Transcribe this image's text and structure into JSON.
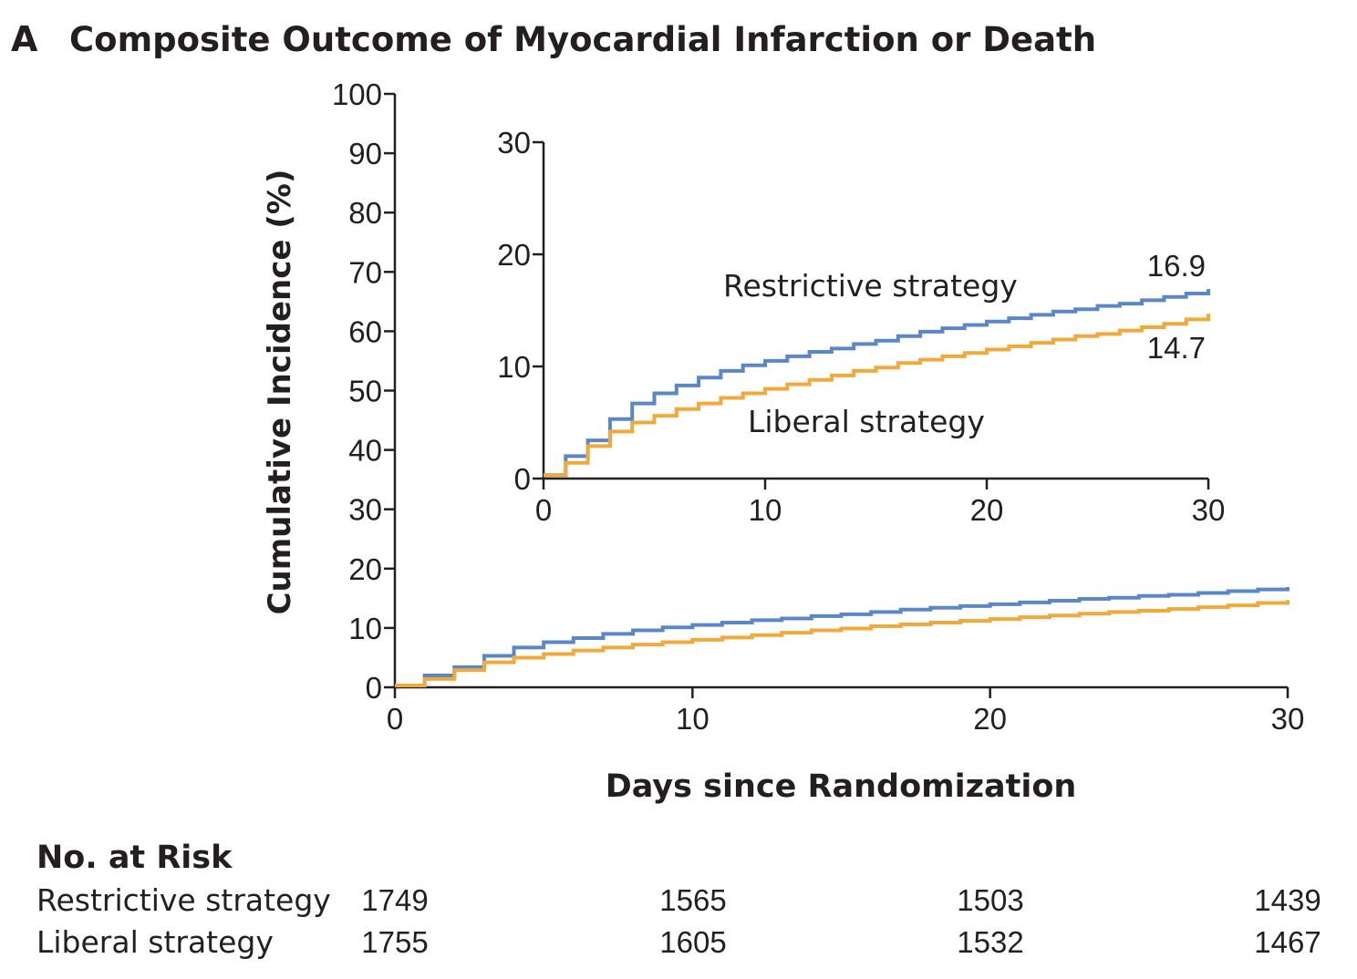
{
  "panel_letter": "A",
  "chart_data": {
    "type": "line",
    "title": "Composite Outcome of Myocardial Infarction or Death",
    "xlabel": "Days since Randomization",
    "ylabel": "Cumulative Incidence (%)",
    "xlim": [
      0,
      30
    ],
    "ylim": [
      0,
      100
    ],
    "x_ticks": [
      "0",
      "10",
      "20",
      "30"
    ],
    "y_ticks": [
      "0",
      "10",
      "20",
      "30",
      "40",
      "50",
      "60",
      "70",
      "80",
      "90",
      "100"
    ],
    "step": true,
    "x": [
      0,
      1,
      2,
      3,
      4,
      5,
      6,
      7,
      8,
      9,
      10,
      11,
      12,
      13,
      14,
      15,
      16,
      17,
      18,
      19,
      20,
      21,
      22,
      23,
      24,
      25,
      26,
      27,
      28,
      29,
      30
    ],
    "series": [
      {
        "name": "Restrictive strategy",
        "color": "#5b87c7",
        "values": [
          0.3,
          2.0,
          3.4,
          5.3,
          6.7,
          7.6,
          8.3,
          9.0,
          9.6,
          10.1,
          10.5,
          10.9,
          11.3,
          11.6,
          12.0,
          12.3,
          12.7,
          13.1,
          13.4,
          13.7,
          14.0,
          14.3,
          14.6,
          14.9,
          15.1,
          15.4,
          15.6,
          15.9,
          16.2,
          16.5,
          16.9
        ]
      },
      {
        "name": "Liberal strategy",
        "color": "#f0a93b",
        "values": [
          0.3,
          1.4,
          2.9,
          4.2,
          5.0,
          5.6,
          6.2,
          6.7,
          7.2,
          7.6,
          8.0,
          8.4,
          8.8,
          9.2,
          9.6,
          9.9,
          10.3,
          10.6,
          10.9,
          11.2,
          11.5,
          11.8,
          12.1,
          12.4,
          12.7,
          12.9,
          13.2,
          13.5,
          13.8,
          14.2,
          14.7
        ]
      }
    ],
    "inset": {
      "xlim": [
        0,
        30
      ],
      "ylim": [
        0,
        30
      ],
      "x_ticks": [
        "0",
        "10",
        "20",
        "30"
      ],
      "y_ticks": [
        "0",
        "10",
        "20",
        "30"
      ],
      "end_labels": {
        "restrictive": "16.9",
        "liberal": "14.7"
      }
    }
  },
  "risk_table": {
    "heading": "No. at Risk",
    "rows": [
      {
        "label": "Restrictive strategy",
        "values": [
          "1749",
          "1565",
          "1503",
          "1439"
        ]
      },
      {
        "label": "Liberal strategy",
        "values": [
          "1755",
          "1605",
          "1532",
          "1467"
        ]
      }
    ]
  }
}
